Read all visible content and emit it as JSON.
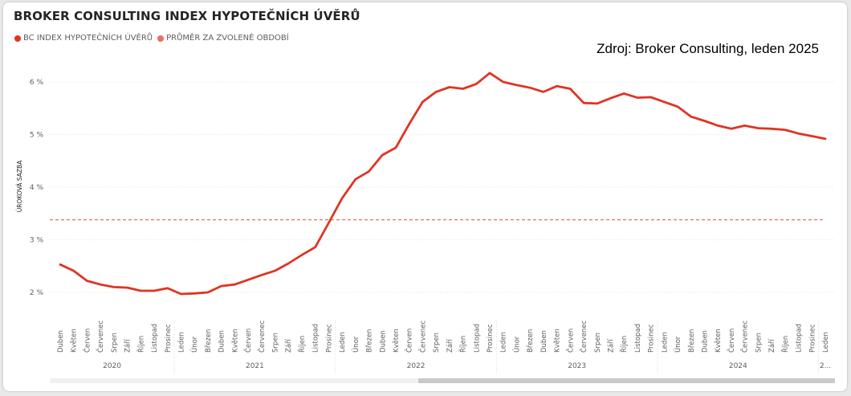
{
  "title": "BROKER CONSULTING INDEX HYPOTEČNÍCH ÚVĚRŮ",
  "source_note": "Zdroj: Broker Consulting, leden 2025",
  "colors": {
    "series": "#e03423",
    "average": "#ee6e60"
  },
  "chart_data": {
    "type": "line",
    "ylabel": "ÚROKOVÁ SAZBA",
    "yticks": [
      "2 %",
      "3 %",
      "4 %",
      "5 %",
      "6 %"
    ],
    "ylim": [
      1.85,
      6.35
    ],
    "grid": true,
    "legend_position": "top-left",
    "categories": [
      "Duben",
      "Květen",
      "Červen",
      "Červenec",
      "Srpen",
      "Září",
      "Říjen",
      "Listopad",
      "Prosinec",
      "Leden",
      "Únor",
      "Březen",
      "Duben",
      "Květen",
      "Červen",
      "Červenec",
      "Srpen",
      "Září",
      "Říjen",
      "Listopad",
      "Prosinec",
      "Leden",
      "Únor",
      "Březen",
      "Duben",
      "Květen",
      "Červen",
      "Červenec",
      "Srpen",
      "Září",
      "Říjen",
      "Listopad",
      "Prosinec",
      "Leden",
      "Únor",
      "Březen",
      "Duben",
      "Květen",
      "Červen",
      "Červenec",
      "Srpen",
      "Září",
      "Říjen",
      "Listopad",
      "Prosinec",
      "Leden",
      "Únor",
      "Březen",
      "Duben",
      "Květen",
      "Červen",
      "Červenec",
      "Srpen",
      "Září",
      "Říjen",
      "Listopad",
      "Prosinec",
      "Leden"
    ],
    "year_groups": [
      {
        "label": "2020",
        "count": 9
      },
      {
        "label": "2021",
        "count": 12
      },
      {
        "label": "2022",
        "count": 12
      },
      {
        "label": "2023",
        "count": 12
      },
      {
        "label": "2024",
        "count": 12
      },
      {
        "label": "2...",
        "count": 1
      }
    ],
    "series": [
      {
        "name": "BC INDEX HYPOTEČNÍCH ÚVĚRŮ",
        "values": [
          2.53,
          2.41,
          2.22,
          2.15,
          2.1,
          2.09,
          2.03,
          2.03,
          2.08,
          1.97,
          1.98,
          2.0,
          2.12,
          2.15,
          2.24,
          2.33,
          2.41,
          2.55,
          2.71,
          2.86,
          3.32,
          3.79,
          4.15,
          4.3,
          4.61,
          4.75,
          5.2,
          5.62,
          5.81,
          5.9,
          5.87,
          5.96,
          6.17,
          6.0,
          5.94,
          5.89,
          5.81,
          5.92,
          5.87,
          5.6,
          5.59,
          5.69,
          5.78,
          5.7,
          5.71,
          5.62,
          5.53,
          5.34,
          5.26,
          5.17,
          5.11,
          5.17,
          5.12,
          5.11,
          5.09,
          5.02,
          4.97,
          4.92
        ]
      },
      {
        "name": "PRŮMĚR ZA ZVOLENÉ OBDOBÍ",
        "style": "dashed",
        "value": 3.38
      }
    ]
  }
}
